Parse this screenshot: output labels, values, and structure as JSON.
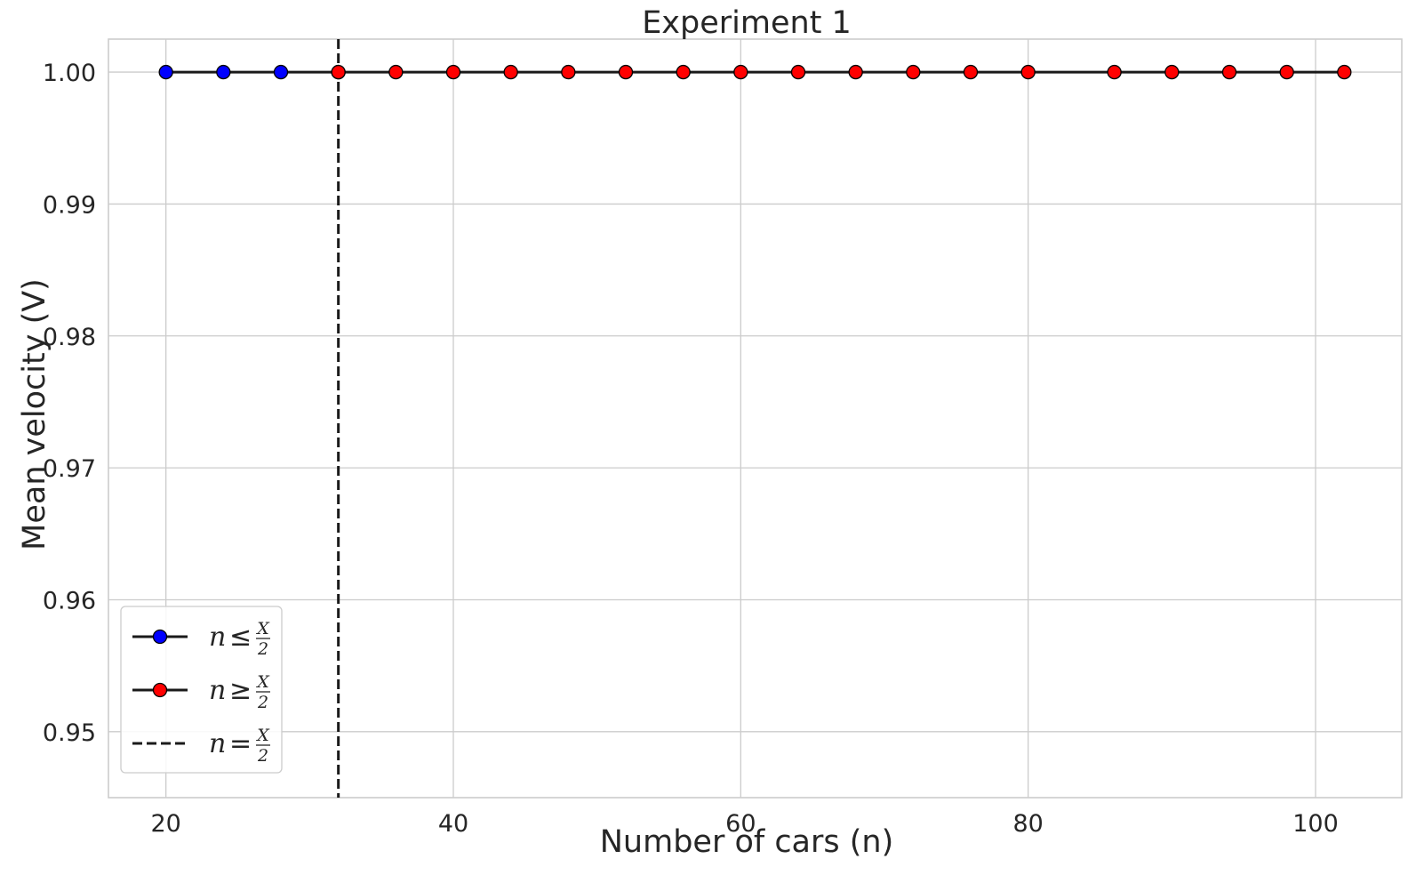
{
  "chart_data": {
    "type": "line",
    "title": "Experiment 1",
    "xlabel": "Number of cars (n)",
    "ylabel": "Mean velocity (V)",
    "xlim": [
      16,
      106
    ],
    "ylim": [
      0.945,
      1.0025
    ],
    "xticks": [
      20,
      40,
      60,
      80,
      100
    ],
    "yticks": [
      0.95,
      0.96,
      0.97,
      0.98,
      0.99,
      1.0
    ],
    "ytick_labels": [
      "0.95",
      "0.96",
      "0.97",
      "0.98",
      "0.99",
      "1.00"
    ],
    "grid": true,
    "legend_position": "lower-left",
    "series": [
      {
        "key": "below",
        "marker_color": "#0000ff",
        "line_color": "#1a1a1a",
        "x": [
          20,
          24,
          28,
          32
        ],
        "y": [
          1.0,
          1.0,
          1.0,
          1.0
        ]
      },
      {
        "key": "above",
        "marker_color": "#ff0000",
        "line_color": "#1a1a1a",
        "x": [
          32,
          36,
          40,
          44,
          48,
          52,
          56,
          60,
          64,
          68,
          72,
          76,
          80,
          86,
          90,
          94,
          98,
          102
        ],
        "y": [
          1.0,
          1.0,
          1.0,
          1.0,
          1.0,
          1.0,
          1.0,
          1.0,
          1.0,
          1.0,
          1.0,
          1.0,
          1.0,
          1.0,
          1.0,
          1.0,
          1.0,
          1.0
        ]
      }
    ],
    "vline": {
      "x": 32,
      "style": "dashed",
      "color": "#1a1a1a"
    },
    "legend": [
      {
        "var": "n",
        "op": "≤",
        "num": "X",
        "den": "2",
        "kind": "marker",
        "color": "#0000ff"
      },
      {
        "var": "n",
        "op": "≥",
        "num": "X",
        "den": "2",
        "kind": "marker",
        "color": "#ff0000"
      },
      {
        "var": "n",
        "op": "=",
        "num": "X",
        "den": "2",
        "kind": "dashed",
        "color": "#1a1a1a"
      }
    ]
  }
}
